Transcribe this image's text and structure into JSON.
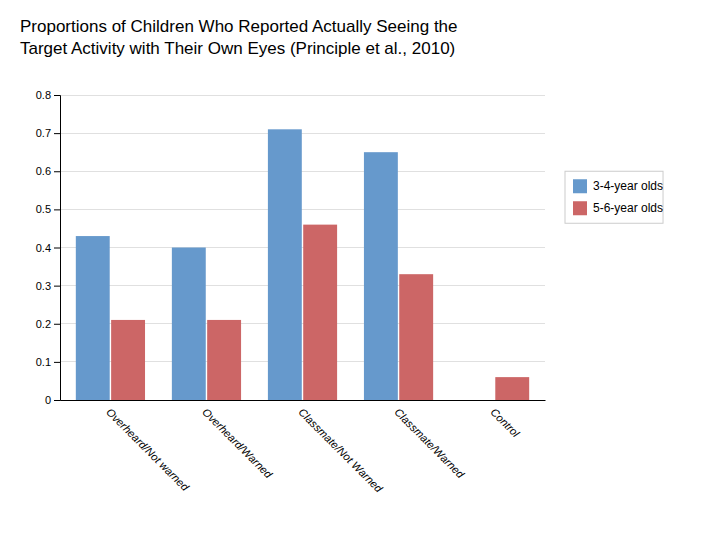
{
  "chart_data": {
    "type": "bar",
    "title": "Proportions of Children Who Reported Actually Seeing the\nTarget Activity with Their Own Eyes (Principle et al., 2010)",
    "categories": [
      "Overheard/Not warned",
      "Overheard/Warned",
      "Classmate/Not Warned",
      "Classmate/Warned",
      "Control"
    ],
    "series": [
      {
        "name": "3-4-year olds",
        "color": "#6699CC",
        "values": [
          0.43,
          0.4,
          0.71,
          0.65,
          0.0
        ]
      },
      {
        "name": "5-6-year olds",
        "color": "#CC6666",
        "values": [
          0.21,
          0.21,
          0.46,
          0.33,
          0.06
        ]
      }
    ],
    "ylim": [
      0,
      0.8
    ],
    "yticks": [
      0,
      0.1,
      0.2,
      0.3,
      0.4,
      0.5,
      0.6,
      0.7,
      0.8
    ],
    "grid": true,
    "legend": "right"
  }
}
